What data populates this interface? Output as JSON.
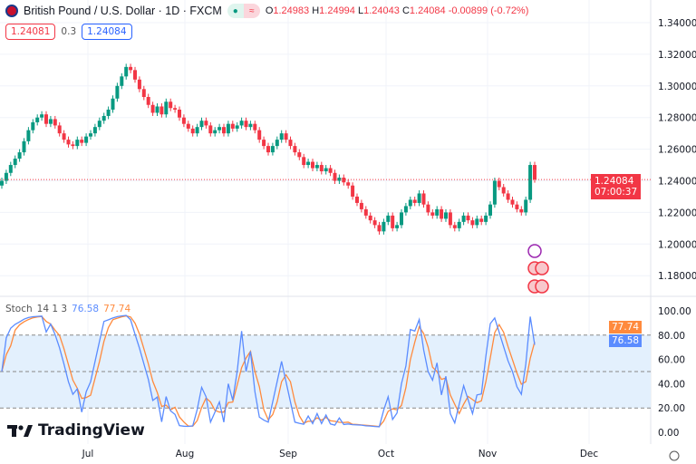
{
  "header": {
    "symbol": "British Pound / U.S. Dollar · 1D · FXCM",
    "open_label": "O",
    "open": "1.24983",
    "high_label": "H",
    "high": "1.24994",
    "low_label": "L",
    "low": "1.24043",
    "close_label": "C",
    "close": "1.24084",
    "change": "-0.00899 (-0.72%)",
    "status_icon": "market-open-dot",
    "wave_icon": "≈"
  },
  "trade": {
    "sell": "1.24081",
    "spread": "0.3",
    "buy": "1.24084"
  },
  "price_label": {
    "price": "1.24084",
    "countdown": "07:00:37"
  },
  "stoch": {
    "label": "Stoch",
    "params": "14 1 3",
    "k": "76.58",
    "d": "77.74",
    "k_color": "#5b8cff",
    "d_color": "#ff8a3d"
  },
  "brand": "TradingView",
  "colors": {
    "up": "#089981",
    "down": "#f23645",
    "band": "#e3f0fd"
  },
  "chart_data": {
    "type": "candlestick",
    "price_axis": [
      "1.34000",
      "1.32000",
      "1.30000",
      "1.28000",
      "1.26000",
      "1.24000",
      "1.22000",
      "1.20000",
      "1.18000"
    ],
    "stoch_axis": [
      "100.00",
      "80.00",
      "60.00",
      "40.00",
      "20.00",
      "0.00"
    ],
    "x_ticks": [
      "Jul",
      "Aug",
      "Sep",
      "Oct",
      "Nov",
      "Dec"
    ],
    "stoch_levels": [
      80,
      50,
      20
    ],
    "closes": [
      1.24,
      1.245,
      1.25,
      1.254,
      1.258,
      1.265,
      1.272,
      1.277,
      1.28,
      1.282,
      1.276,
      1.279,
      1.275,
      1.27,
      1.266,
      1.263,
      1.262,
      1.266,
      1.264,
      1.268,
      1.27,
      1.274,
      1.278,
      1.281,
      1.285,
      1.292,
      1.3,
      1.306,
      1.312,
      1.31,
      1.304,
      1.298,
      1.293,
      1.288,
      1.283,
      1.287,
      1.282,
      1.29,
      1.286,
      1.285,
      1.28,
      1.276,
      1.273,
      1.27,
      1.274,
      1.278,
      1.275,
      1.27,
      1.272,
      1.274,
      1.27,
      1.276,
      1.273,
      1.275,
      1.278,
      1.274,
      1.276,
      1.272,
      1.266,
      1.262,
      1.258,
      1.262,
      1.266,
      1.27,
      1.266,
      1.262,
      1.258,
      1.255,
      1.25,
      1.252,
      1.248,
      1.25,
      1.246,
      1.248,
      1.245,
      1.24,
      1.242,
      1.239,
      1.237,
      1.23,
      1.226,
      1.222,
      1.218,
      1.215,
      1.212,
      1.208,
      1.214,
      1.218,
      1.21,
      1.212,
      1.22,
      1.224,
      1.228,
      1.226,
      1.232,
      1.225,
      1.22,
      1.218,
      1.222,
      1.216,
      1.22,
      1.212,
      1.21,
      1.214,
      1.218,
      1.215,
      1.212,
      1.216,
      1.214,
      1.218,
      1.225,
      1.24,
      1.236,
      1.232,
      1.228,
      1.225,
      1.222,
      1.22,
      1.228,
      1.25,
      1.2408
    ]
  }
}
